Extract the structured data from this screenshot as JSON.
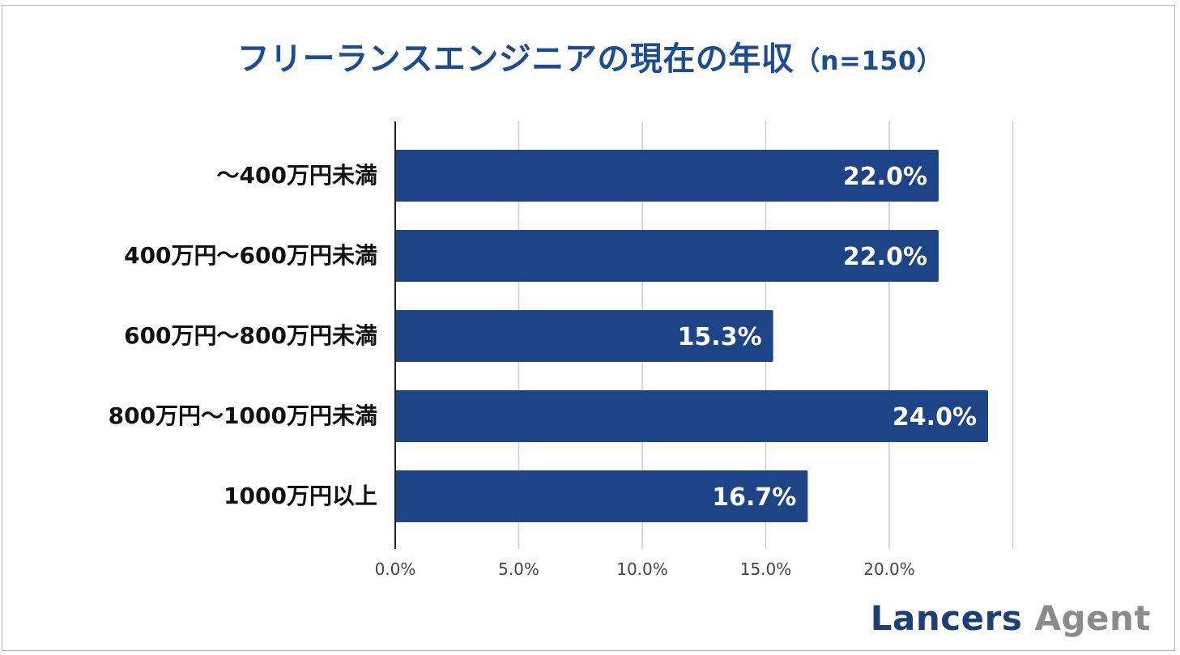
{
  "title_main": "フリーランスエンジニアの現在の年収",
  "title_note": "（n=150）",
  "logo": {
    "word1": "Lancers",
    "word2": "Agent"
  },
  "colors": {
    "title": "#1d4c8f",
    "bar": "#1c4487",
    "grid": "#cccccc",
    "axis": "#222222",
    "data_label": "#ffffff",
    "tick_label": "#444444"
  },
  "chart_data": {
    "type": "bar",
    "orientation": "horizontal",
    "title": "フリーランスエンジニアの現在の年収（n=150）",
    "categories": [
      "～400万円未満",
      "400万円～600万円未満",
      "600万円～800万円未満",
      "800万円～1000万円未満",
      "1000万円以上"
    ],
    "values": [
      22.0,
      22.0,
      15.3,
      24.0,
      16.7
    ],
    "value_labels": [
      "22.0%",
      "22.0%",
      "15.3%",
      "24.0%",
      "16.7%"
    ],
    "x_ticks": [
      "0.0%",
      "5.0%",
      "10.0%",
      "15.0%",
      "20.0%"
    ],
    "xlim": [
      0,
      25
    ],
    "grid": true,
    "xlabel": "",
    "ylabel": ""
  }
}
